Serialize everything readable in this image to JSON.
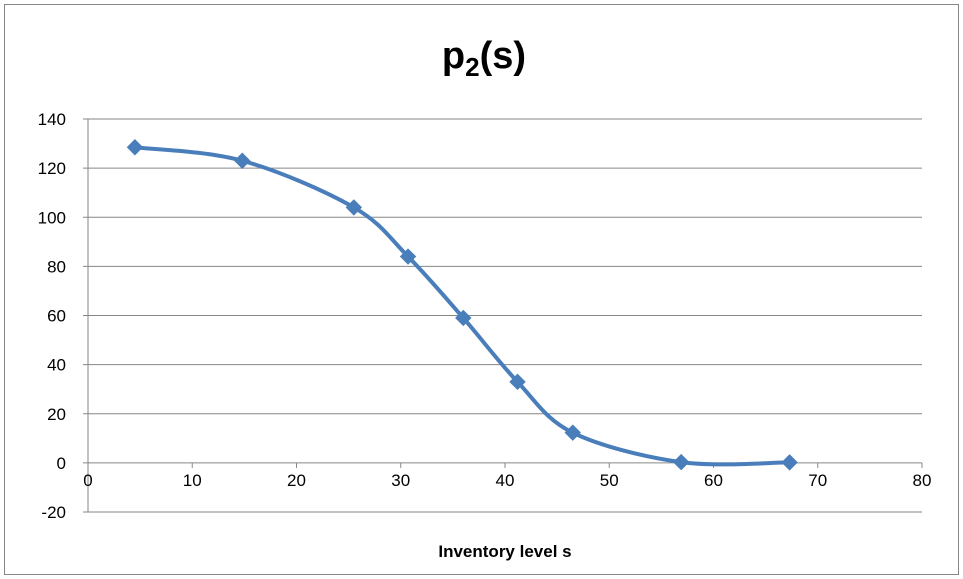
{
  "chart_data": {
    "type": "line",
    "title": "p",
    "title_subscript": "2",
    "title_suffix": "(s)",
    "xlabel": "Inventory level s",
    "ylabel": "",
    "xlim": [
      0,
      80
    ],
    "ylim": [
      -20,
      140
    ],
    "x_ticks": [
      0,
      10,
      20,
      30,
      40,
      50,
      60,
      70,
      80
    ],
    "y_ticks": [
      -20,
      0,
      20,
      40,
      60,
      80,
      100,
      120,
      140
    ],
    "grid": true,
    "smooth": true,
    "marker": "diamond",
    "legend": "none",
    "series": [
      {
        "color": "#4a7ebb",
        "x": [
          4.5,
          14.8,
          25.5,
          30.7,
          36,
          41.2,
          46.5,
          56.9,
          67.3
        ],
        "y": [
          128.5,
          123,
          104,
          84,
          59,
          33,
          12.3,
          0.3,
          0.2
        ]
      }
    ]
  }
}
